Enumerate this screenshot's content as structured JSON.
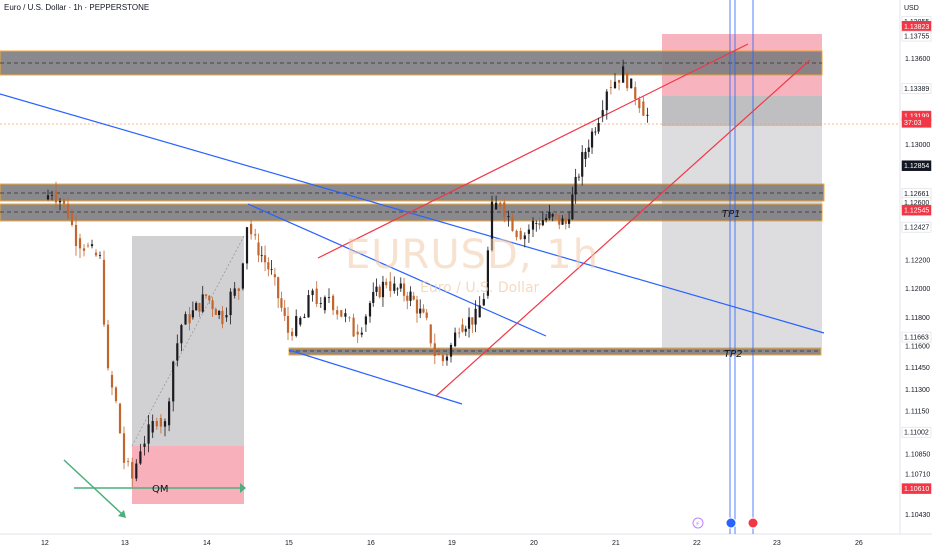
{
  "header": {
    "title": "Euro / U.S. Dollar · 1h · PEPPERSTONE",
    "currency": "USD"
  },
  "watermark": {
    "symbol": "EURUSD, 1h",
    "name": "Euro / U.S. Dollar"
  },
  "chart_data": {
    "type": "candlestick",
    "title": "Euro / U.S. Dollar · 1h · PEPPERSTONE",
    "ylim": [
      1.1035,
      1.1395
    ],
    "x_day_ticks": [
      {
        "label": "12",
        "day": 12
      },
      {
        "label": "13",
        "day": 13
      },
      {
        "label": "14",
        "day": 14
      },
      {
        "label": "15",
        "day": 15
      },
      {
        "label": "16",
        "day": 16
      },
      {
        "label": "19",
        "day": 19
      },
      {
        "label": "20",
        "day": 20
      },
      {
        "label": "21",
        "day": 21
      },
      {
        "label": "22",
        "day": 22
      },
      {
        "label": "23",
        "day": 23
      },
      {
        "label": "26",
        "day": 26
      }
    ],
    "y_tick_labels": [
      "1.13600",
      "1.13000",
      "1.12200",
      "1.12000",
      "1.11800",
      "1.11600",
      "1.11450",
      "1.11300",
      "1.11150",
      "1.10850",
      "1.10710",
      "1.10430"
    ],
    "price_tags": [
      {
        "label": "1.13855",
        "value": 1.13855,
        "bg": "#ffffff",
        "fg": "#131722"
      },
      {
        "label": "1.13823",
        "value": 1.13823,
        "bg": "#f23645",
        "fg": "#ffffff"
      },
      {
        "label": "1.13755",
        "value": 1.13755,
        "bg": "#ffffff",
        "fg": "#131722"
      },
      {
        "label": "1.13389",
        "value": 1.13389,
        "bg": "#ffffff",
        "fg": "#131722"
      },
      {
        "label": "1.13199",
        "value": 1.13199,
        "bg": "#f23645",
        "fg": "#ffffff"
      },
      {
        "label": "37:03",
        "value": 1.13155,
        "bg": "#f23645",
        "fg": "#ffffff"
      },
      {
        "label": "1.12854",
        "value": 1.12854,
        "bg": "#131722",
        "fg": "#ffffff"
      },
      {
        "label": "1.12661",
        "value": 1.12661,
        "bg": "#ffffff",
        "fg": "#131722"
      },
      {
        "label": "1.12600",
        "value": 1.126,
        "bg": "#ffffff",
        "fg": "#131722"
      },
      {
        "label": "1.12545",
        "value": 1.12545,
        "bg": "#f23645",
        "fg": "#ffffff"
      },
      {
        "label": "1.12427",
        "value": 1.12427,
        "bg": "#ffffff",
        "fg": "#131722"
      },
      {
        "label": "1.11663",
        "value": 1.11663,
        "bg": "#ffffff",
        "fg": "#131722"
      },
      {
        "label": "1.11002",
        "value": 1.11002,
        "bg": "#ffffff",
        "fg": "#131722"
      },
      {
        "label": "1.10610",
        "value": 1.1061,
        "bg": "#f23645",
        "fg": "#ffffff"
      }
    ],
    "path_points": [
      [
        12.0,
        1.1262
      ],
      [
        12.1,
        1.1268
      ],
      [
        12.2,
        1.1262
      ],
      [
        12.3,
        1.1252
      ],
      [
        12.4,
        1.1235
      ],
      [
        12.5,
        1.123
      ],
      [
        12.6,
        1.1225
      ],
      [
        12.7,
        1.122
      ],
      [
        12.8,
        1.114
      ],
      [
        12.9,
        1.112
      ],
      [
        13.0,
        1.108
      ],
      [
        13.1,
        1.1068
      ],
      [
        13.2,
        1.109
      ],
      [
        13.3,
        1.11
      ],
      [
        13.4,
        1.111
      ],
      [
        13.5,
        1.1105
      ],
      [
        13.6,
        1.115
      ],
      [
        13.7,
        1.1175
      ],
      [
        13.8,
        1.118
      ],
      [
        14.0,
        1.1195
      ],
      [
        14.2,
        1.118
      ],
      [
        14.3,
        1.1195
      ],
      [
        14.4,
        1.12
      ],
      [
        14.5,
        1.1245
      ],
      [
        14.6,
        1.1232
      ],
      [
        14.8,
        1.121
      ],
      [
        15.0,
        1.117
      ],
      [
        15.1,
        1.1175
      ],
      [
        15.2,
        1.118
      ],
      [
        15.3,
        1.12
      ],
      [
        15.4,
        1.1185
      ],
      [
        15.5,
        1.1195
      ],
      [
        15.6,
        1.1185
      ],
      [
        15.7,
        1.118
      ],
      [
        15.8,
        1.117
      ],
      [
        15.9,
        1.1175
      ],
      [
        16.0,
        1.119
      ],
      [
        16.2,
        1.1205
      ],
      [
        16.3,
        1.12
      ],
      [
        16.5,
        1.1195
      ],
      [
        16.7,
        1.1175
      ],
      [
        16.8,
        1.1155
      ],
      [
        16.9,
        1.115
      ],
      [
        17.0,
        1.116
      ],
      [
        17.1,
        1.1175
      ],
      [
        17.3,
        1.118
      ],
      [
        17.4,
        1.1195
      ],
      [
        17.5,
        1.1255
      ],
      [
        17.6,
        1.126
      ],
      [
        17.7,
        1.125
      ],
      [
        17.8,
        1.124
      ],
      [
        17.9,
        1.1238
      ],
      [
        18.0,
        1.1245
      ],
      [
        18.2,
        1.125
      ],
      [
        18.4,
        1.1245
      ],
      [
        18.6,
        1.129
      ],
      [
        18.8,
        1.132
      ],
      [
        18.9,
        1.134
      ],
      [
        19.0,
        1.1345
      ],
      [
        19.1,
        1.135
      ],
      [
        19.2,
        1.134
      ],
      [
        19.3,
        1.133
      ],
      [
        19.4,
        1.132
      ]
    ],
    "x_map": [
      [
        12,
        44
      ],
      [
        13,
        124
      ],
      [
        14,
        206
      ],
      [
        15,
        288
      ],
      [
        16,
        370
      ],
      [
        17,
        451
      ],
      [
        18,
        533
      ],
      [
        19,
        615
      ],
      [
        20,
        696
      ],
      [
        21,
        777
      ],
      [
        22,
        858
      ]
    ]
  }
}
